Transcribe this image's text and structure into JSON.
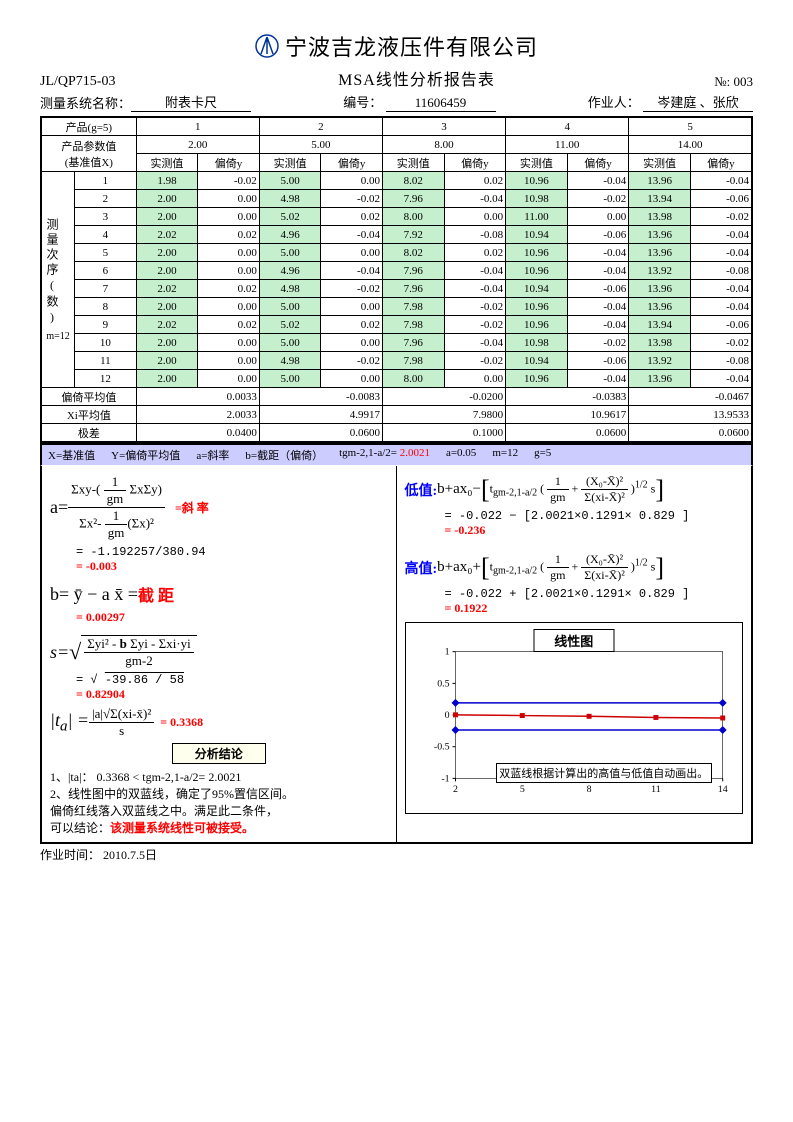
{
  "header": {
    "company": "宁波吉龙液压件有限公司",
    "doc_no": "JL/QP715-03",
    "sheet_title": "MSA线性分析报告表",
    "no_label": "№:",
    "no_value": "003",
    "sys_label": "测量系统名称：",
    "sys_value": "附表卡尺",
    "code_label": "编号：",
    "code_value": "11606459",
    "oper_label": "作业人：",
    "oper_value": "岑建庭 、张欣"
  },
  "table": {
    "prod_label": "产品(g=5)",
    "param_label1": "产品参数值",
    "param_label2": "(基准值X)",
    "meas_col": "实测值",
    "bias_col": "偏倚y",
    "side_label": "测量次序(数)",
    "m_note": "m=12",
    "cols": [
      "1",
      "2",
      "3",
      "4",
      "5"
    ],
    "ref": [
      "2.00",
      "5.00",
      "8.00",
      "11.00",
      "14.00"
    ],
    "rows": [
      {
        "n": "1",
        "v": [
          [
            "1.98",
            "-0.02"
          ],
          [
            "5.00",
            "0.00"
          ],
          [
            "8.02",
            "0.02"
          ],
          [
            "10.96",
            "-0.04"
          ],
          [
            "13.96",
            "-0.04"
          ]
        ]
      },
      {
        "n": "2",
        "v": [
          [
            "2.00",
            "0.00"
          ],
          [
            "4.98",
            "-0.02"
          ],
          [
            "7.96",
            "-0.04"
          ],
          [
            "10.98",
            "-0.02"
          ],
          [
            "13.94",
            "-0.06"
          ]
        ]
      },
      {
        "n": "3",
        "v": [
          [
            "2.00",
            "0.00"
          ],
          [
            "5.02",
            "0.02"
          ],
          [
            "8.00",
            "0.00"
          ],
          [
            "11.00",
            "0.00"
          ],
          [
            "13.98",
            "-0.02"
          ]
        ]
      },
      {
        "n": "4",
        "v": [
          [
            "2.02",
            "0.02"
          ],
          [
            "4.96",
            "-0.04"
          ],
          [
            "7.92",
            "-0.08"
          ],
          [
            "10.94",
            "-0.06"
          ],
          [
            "13.96",
            "-0.04"
          ]
        ]
      },
      {
        "n": "5",
        "v": [
          [
            "2.00",
            "0.00"
          ],
          [
            "5.00",
            "0.00"
          ],
          [
            "8.02",
            "0.02"
          ],
          [
            "10.96",
            "-0.04"
          ],
          [
            "13.96",
            "-0.04"
          ]
        ]
      },
      {
        "n": "6",
        "v": [
          [
            "2.00",
            "0.00"
          ],
          [
            "4.96",
            "-0.04"
          ],
          [
            "7.96",
            "-0.04"
          ],
          [
            "10.96",
            "-0.04"
          ],
          [
            "13.92",
            "-0.08"
          ]
        ]
      },
      {
        "n": "7",
        "v": [
          [
            "2.02",
            "0.02"
          ],
          [
            "4.98",
            "-0.02"
          ],
          [
            "7.96",
            "-0.04"
          ],
          [
            "10.94",
            "-0.06"
          ],
          [
            "13.96",
            "-0.04"
          ]
        ]
      },
      {
        "n": "8",
        "v": [
          [
            "2.00",
            "0.00"
          ],
          [
            "5.00",
            "0.00"
          ],
          [
            "7.98",
            "-0.02"
          ],
          [
            "10.96",
            "-0.04"
          ],
          [
            "13.96",
            "-0.04"
          ]
        ]
      },
      {
        "n": "9",
        "v": [
          [
            "2.02",
            "0.02"
          ],
          [
            "5.02",
            "0.02"
          ],
          [
            "7.98",
            "-0.02"
          ],
          [
            "10.96",
            "-0.04"
          ],
          [
            "13.94",
            "-0.06"
          ]
        ]
      },
      {
        "n": "10",
        "v": [
          [
            "2.00",
            "0.00"
          ],
          [
            "5.00",
            "0.00"
          ],
          [
            "7.96",
            "-0.04"
          ],
          [
            "10.98",
            "-0.02"
          ],
          [
            "13.98",
            "-0.02"
          ]
        ]
      },
      {
        "n": "11",
        "v": [
          [
            "2.00",
            "0.00"
          ],
          [
            "4.98",
            "-0.02"
          ],
          [
            "7.98",
            "-0.02"
          ],
          [
            "10.94",
            "-0.06"
          ],
          [
            "13.92",
            "-0.08"
          ]
        ]
      },
      {
        "n": "12",
        "v": [
          [
            "2.00",
            "0.00"
          ],
          [
            "5.00",
            "0.00"
          ],
          [
            "8.00",
            "0.00"
          ],
          [
            "10.96",
            "-0.04"
          ],
          [
            "13.96",
            "-0.04"
          ]
        ]
      }
    ],
    "avg_bias_label": "偏倚平均值",
    "avg_bias": [
      "0.0033",
      "-0.0083",
      "-0.0200",
      "-0.0383",
      "-0.0467"
    ],
    "xi_avg_label": "Xi平均值",
    "xi_avg": [
      "2.0033",
      "4.9917",
      "7.9800",
      "10.9617",
      "13.9533"
    ],
    "range_label": "极差",
    "range": [
      "0.0400",
      "0.0600",
      "0.1000",
      "0.0600",
      "0.0600"
    ]
  },
  "paramsbar": {
    "p1": "X=基准值",
    "p2": "Y=偏倚平均值",
    "p3": "a=斜率",
    "p4": "b=截距（偏倚）",
    "p5a": "tgm-2,1-a/2=",
    "p5b": "2.0021",
    "p6": "a=0.05",
    "p7": "m=12",
    "p8": "g=5"
  },
  "formulas": {
    "a_label": "a=",
    "a_formula_num": "Σxy-( 1/gm ΣxΣy)",
    "a_formula_den": "Σx²- 1/gm (Σx)²",
    "a_eq_slope": "=斜率",
    "a_calc": "= -1.192257/380.94",
    "a_result": "= -0.003",
    "b_formula": "b= ȳ − a x̄ =",
    "b_label": "截 距",
    "b_result": "= 0.00297",
    "s_label": "s=",
    "s_num": "Σyi² - b Σyi - Σxi·yi",
    "s_den": "gm-2",
    "s_calc": "= √ -39.86 / 58",
    "s_result": "= 0.82904",
    "ta_label": "|ta| =",
    "ta_num": "|a|√Σ(xi-x̄)²",
    "ta_den": "s",
    "ta_result": "= 0.3368",
    "concl_label": "分析结论",
    "c1": "1、|ta|：  0.3368  <  tgm-2,1-a/2= 2.0021",
    "c2": "2、线性图中的双蓝线，确定了95%置信区间。",
    "c3": "  偏倚红线落入双蓝线之中。满足此二条件，",
    "c4": "  可以结论：",
    "c4r": "该测量系统线性可被接受。",
    "low_label": "低值:",
    "low_f": "b+ax₀−",
    "low_br": "tgm-2,1-a/2 ( 1/gm + (X₀-X̄)²/Σ(xi-X̄)² )^1/2 s",
    "low_calc": "= -0.022 − [2.0021×0.1291× 0.829 ]",
    "low_result": "= -0.236",
    "high_label": "高值:",
    "high_f": "b+ax₀+",
    "high_calc": "= -0.022 + [2.0021×0.1291× 0.829 ]",
    "high_result": "= 0.1922"
  },
  "chart": {
    "title": "线性图",
    "note": "双蓝线根据计算出的高值与低值自动画出。",
    "x_ticks": [
      "2",
      "5",
      "8",
      "11",
      "14"
    ],
    "y_ticks": [
      "-1",
      "-0.5",
      "0",
      "0.5",
      "1"
    ],
    "xlim": [
      2,
      14
    ],
    "ylim": [
      -1,
      1
    ],
    "blue_upper": 0.1922,
    "blue_lower": -0.236,
    "red_points": [
      [
        2,
        0.0033
      ],
      [
        5,
        -0.0083
      ],
      [
        8,
        -0.02
      ],
      [
        11,
        -0.0383
      ],
      [
        14,
        -0.0467
      ]
    ],
    "colors": {
      "blue": "#0000cc",
      "red": "#cc0000",
      "grid": "#000"
    }
  },
  "footer": {
    "work_label": "作业时间：",
    "work_value": "2010.7.5日"
  }
}
